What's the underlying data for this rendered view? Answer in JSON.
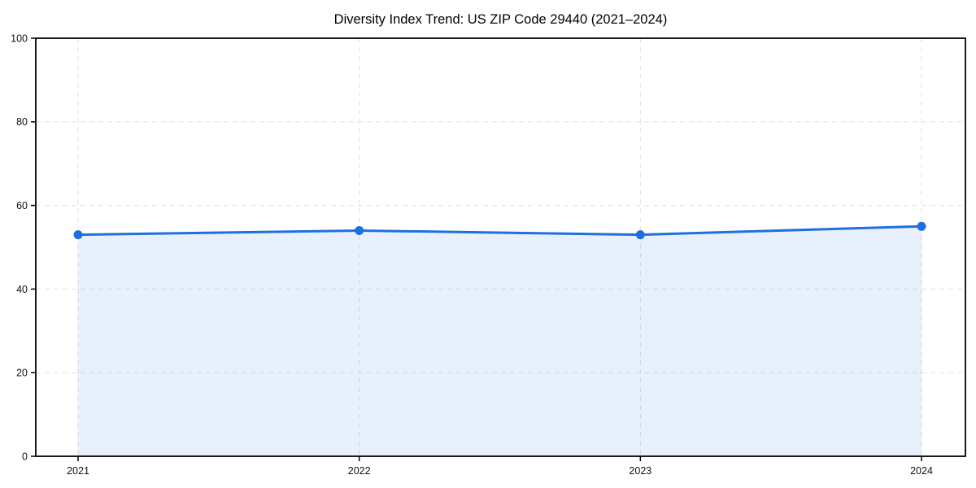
{
  "chart": {
    "title": "Diversity Index Trend: US ZIP Code 29440 (2021–2024)"
  },
  "chart_data": {
    "type": "line",
    "title": "Diversity Index Trend: US ZIP Code 29440 (2021–2024)",
    "x": [
      "2021",
      "2022",
      "2023",
      "2024"
    ],
    "series": [
      {
        "name": "Diversity Index",
        "values": [
          53,
          54,
          53,
          55
        ]
      }
    ],
    "xlabel": "",
    "ylabel": "",
    "ylim": [
      0,
      100
    ],
    "yticks": [
      0,
      20,
      40,
      60,
      80,
      100
    ],
    "grid": true,
    "grid_style": "dashed",
    "legend_position": "none",
    "area_fill": true,
    "markers": true,
    "colors": {
      "line": "#1f6fe0",
      "marker": "#1f6fe0",
      "fill": "rgba(31,111,224,0.10)",
      "grid": "#e1e1e1",
      "axis": "#000000",
      "tick_label": "#111111",
      "title": "#000000",
      "background": "#ffffff"
    }
  }
}
